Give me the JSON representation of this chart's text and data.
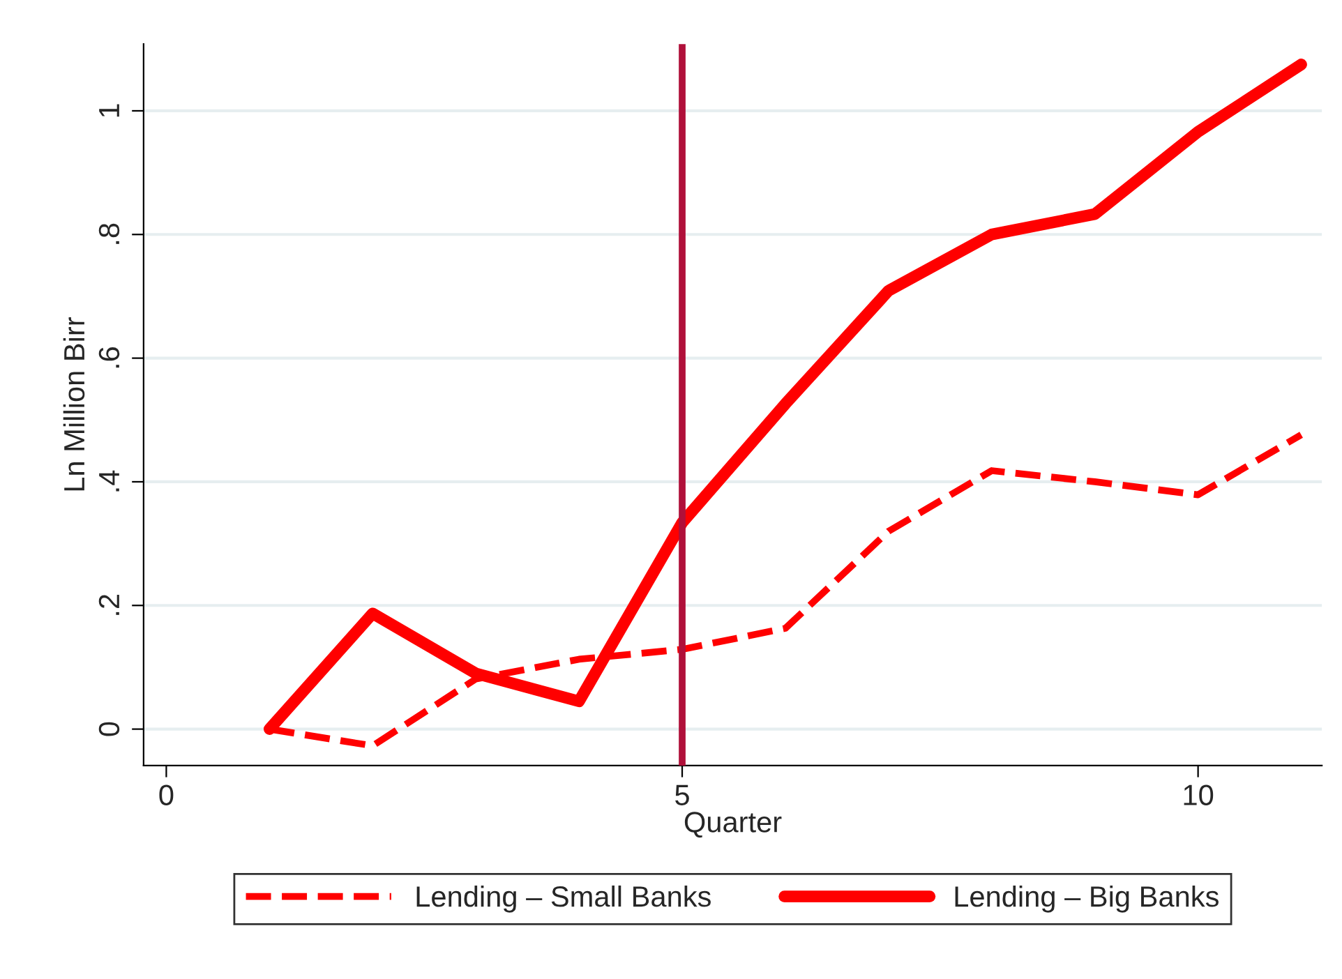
{
  "chart_data": {
    "type": "line",
    "xlabel": "Quarter",
    "ylabel": "Ln Million Birr",
    "x": [
      1,
      2,
      3,
      4,
      5,
      6,
      7,
      8,
      9,
      10,
      11
    ],
    "series": [
      {
        "name": "Lending – Small Banks",
        "color": "#ff0000",
        "line_style": "dashed",
        "values": [
          0,
          -0.027,
          0.081,
          0.113,
          0.129,
          0.163,
          0.32,
          0.418,
          0.4,
          0.379,
          0.476
        ]
      },
      {
        "name": "Lending – Big Banks",
        "color": "#ff0000",
        "line_style": "solid",
        "values": [
          0,
          0.187,
          0.09,
          0.045,
          0.334,
          0.526,
          0.709,
          0.8,
          0.833,
          0.966,
          1.075
        ]
      }
    ],
    "xlim": [
      -0.22,
      11.2
    ],
    "xticks": [
      0,
      5,
      10
    ],
    "ylim": [
      -0.059,
      1.108
    ],
    "yticks": [
      0,
      {
        "value": 0.2,
        "label": ".2"
      },
      {
        "value": 0.4,
        "label": ".4"
      },
      {
        "value": 0.6,
        "label": ".6"
      },
      {
        "value": 0.8,
        "label": ".8"
      },
      1
    ],
    "ref_lines": [
      {
        "axis": "x",
        "value": 5,
        "color": "#b0103a"
      }
    ],
    "grid": "y",
    "legend": "bottom"
  }
}
